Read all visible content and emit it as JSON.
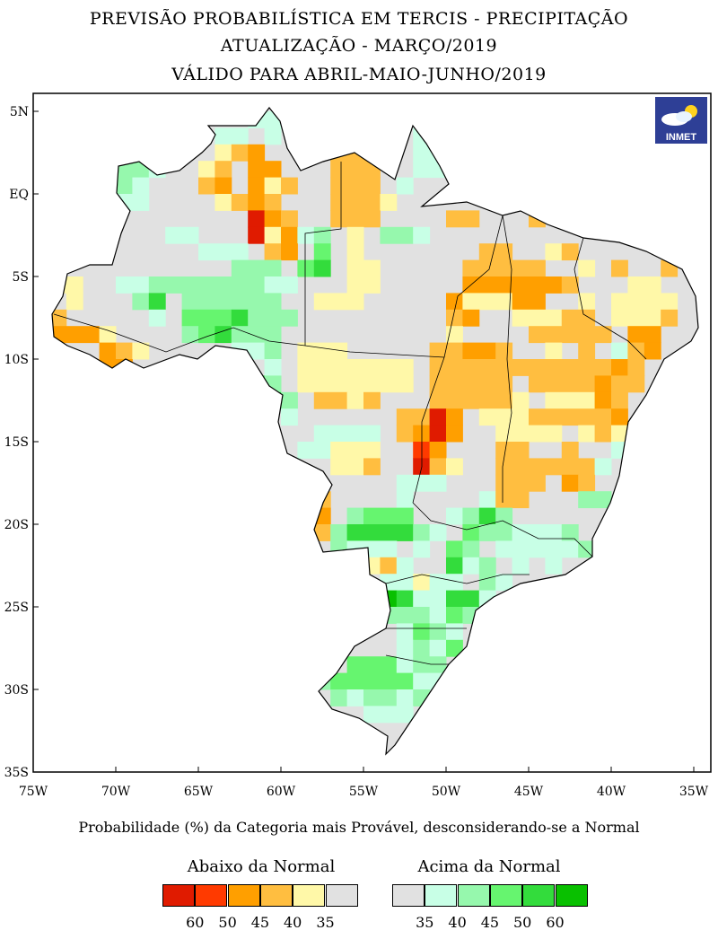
{
  "title": {
    "line1": "PREVISÃO PROBABILÍSTICA EM TERCIS - PRECIPITAÇÃO",
    "line2": "ATUALIZAÇÃO - MARÇO/2019",
    "line3": "VÁLIDO PARA ABRIL-MAIO-JUNHO/2019"
  },
  "logo": {
    "text": "INMET"
  },
  "axes": {
    "lat_labels": [
      "5N",
      "EQ",
      "5S",
      "10S",
      "15S",
      "20S",
      "25S",
      "30S",
      "35S"
    ],
    "lat_values": [
      5,
      0,
      -5,
      -10,
      -15,
      -20,
      -25,
      -30,
      -35
    ],
    "lon_labels": [
      "75W",
      "70W",
      "65W",
      "60W",
      "55W",
      "50W",
      "45W",
      "40W",
      "35W"
    ],
    "lon_values": [
      -75,
      -70,
      -65,
      -60,
      -55,
      -50,
      -45,
      -40,
      -35
    ]
  },
  "caption": "Probabilidade (%) da Categoria mais Provável, desconsiderando-se a Normal",
  "legend": {
    "below": {
      "title": "Abaixo da Normal",
      "labels": [
        "60",
        "50",
        "45",
        "40",
        "35"
      ],
      "colors": [
        "#e01b00",
        "#ff3a00",
        "#ff9f00",
        "#ffbe40",
        "#fff8a8",
        "#e1e1e1"
      ]
    },
    "above": {
      "title": "Acima da Normal",
      "labels": [
        "35",
        "40",
        "45",
        "50",
        "60"
      ],
      "colors": [
        "#e1e1e1",
        "#c8ffe6",
        "#96f8ad",
        "#66f56f",
        "#33dc3c",
        "#09c000"
      ]
    }
  },
  "classes": {
    "a": "#e01b00",
    "b": "#ff3a00",
    "c": "#ff9f00",
    "d": "#ffbe40",
    "e": "#fff8a8",
    "g": "#e1e1e1",
    "1": "#c8ffe6",
    "2": "#96f8ad",
    "3": "#66f56f",
    "4": "#33dc3c",
    "5": "#09c000"
  },
  "grid": {
    "origin_lat": 5,
    "origin_lon": -75,
    "cell_deg": 1,
    "cells": [
      [
        0,
        13,
        14,
        "1"
      ],
      [
        1,
        11,
        12,
        "1"
      ],
      [
        1,
        14,
        14,
        "1"
      ],
      [
        1,
        23,
        25,
        "1"
      ],
      [
        2,
        5,
        5,
        "4"
      ],
      [
        2,
        6,
        6,
        "3"
      ],
      [
        2,
        11,
        11,
        "e"
      ],
      [
        2,
        12,
        12,
        "d"
      ],
      [
        2,
        13,
        13,
        "c"
      ],
      [
        2,
        18,
        20,
        "d"
      ],
      [
        2,
        23,
        24,
        "1"
      ],
      [
        3,
        5,
        6,
        "2"
      ],
      [
        3,
        7,
        7,
        "1"
      ],
      [
        3,
        10,
        10,
        "e"
      ],
      [
        3,
        11,
        11,
        "d"
      ],
      [
        3,
        13,
        14,
        "c"
      ],
      [
        3,
        18,
        20,
        "d"
      ],
      [
        3,
        23,
        24,
        "1"
      ],
      [
        4,
        4,
        5,
        "2"
      ],
      [
        4,
        6,
        6,
        "1"
      ],
      [
        4,
        10,
        10,
        "d"
      ],
      [
        4,
        11,
        11,
        "c"
      ],
      [
        4,
        13,
        13,
        "c"
      ],
      [
        4,
        14,
        14,
        "e"
      ],
      [
        4,
        15,
        15,
        "d"
      ],
      [
        4,
        18,
        20,
        "d"
      ],
      [
        4,
        22,
        22,
        "1"
      ],
      [
        5,
        5,
        6,
        "1"
      ],
      [
        5,
        11,
        11,
        "e"
      ],
      [
        5,
        12,
        12,
        "d"
      ],
      [
        5,
        13,
        13,
        "c"
      ],
      [
        5,
        14,
        14,
        "d"
      ],
      [
        5,
        18,
        20,
        "d"
      ],
      [
        5,
        21,
        21,
        "e"
      ],
      [
        6,
        13,
        13,
        "a"
      ],
      [
        6,
        14,
        14,
        "c"
      ],
      [
        6,
        15,
        15,
        "d"
      ],
      [
        6,
        18,
        20,
        "d"
      ],
      [
        6,
        25,
        26,
        "d"
      ],
      [
        6,
        30,
        30,
        "d"
      ],
      [
        7,
        8,
        9,
        "1"
      ],
      [
        7,
        13,
        13,
        "a"
      ],
      [
        7,
        14,
        14,
        "e"
      ],
      [
        7,
        15,
        15,
        "c"
      ],
      [
        7,
        16,
        16,
        "1"
      ],
      [
        7,
        17,
        17,
        "2"
      ],
      [
        7,
        19,
        19,
        "e"
      ],
      [
        7,
        21,
        22,
        "2"
      ],
      [
        7,
        23,
        23,
        "1"
      ],
      [
        8,
        10,
        12,
        "1"
      ],
      [
        8,
        14,
        14,
        "d"
      ],
      [
        8,
        15,
        15,
        "c"
      ],
      [
        8,
        17,
        17,
        "3"
      ],
      [
        8,
        19,
        19,
        "e"
      ],
      [
        8,
        27,
        28,
        "d"
      ],
      [
        8,
        31,
        31,
        "e"
      ],
      [
        8,
        32,
        32,
        "d"
      ],
      [
        9,
        12,
        14,
        "2"
      ],
      [
        9,
        16,
        16,
        "3"
      ],
      [
        9,
        17,
        17,
        "4"
      ],
      [
        9,
        19,
        20,
        "e"
      ],
      [
        9,
        26,
        30,
        "d"
      ],
      [
        9,
        33,
        33,
        "e"
      ],
      [
        9,
        35,
        35,
        "d"
      ],
      [
        9,
        38,
        38,
        "d"
      ],
      [
        10,
        1,
        2,
        "e"
      ],
      [
        10,
        5,
        6,
        "1"
      ],
      [
        10,
        7,
        13,
        "2"
      ],
      [
        10,
        14,
        15,
        "1"
      ],
      [
        10,
        19,
        20,
        "e"
      ],
      [
        10,
        26,
        31,
        "c"
      ],
      [
        10,
        32,
        32,
        "d"
      ],
      [
        10,
        36,
        37,
        "e"
      ],
      [
        11,
        2,
        2,
        "e"
      ],
      [
        11,
        6,
        6,
        "2"
      ],
      [
        11,
        7,
        7,
        "4"
      ],
      [
        11,
        9,
        14,
        "2"
      ],
      [
        11,
        17,
        19,
        "e"
      ],
      [
        11,
        25,
        25,
        "c"
      ],
      [
        11,
        26,
        28,
        "e"
      ],
      [
        11,
        29,
        30,
        "c"
      ],
      [
        11,
        33,
        33,
        "e"
      ],
      [
        11,
        35,
        38,
        "e"
      ],
      [
        12,
        1,
        1,
        "d"
      ],
      [
        12,
        7,
        7,
        "1"
      ],
      [
        12,
        9,
        11,
        "3"
      ],
      [
        12,
        12,
        12,
        "4"
      ],
      [
        12,
        13,
        15,
        "2"
      ],
      [
        12,
        25,
        25,
        "d"
      ],
      [
        12,
        26,
        26,
        "c"
      ],
      [
        12,
        29,
        31,
        "e"
      ],
      [
        12,
        32,
        33,
        "d"
      ],
      [
        12,
        35,
        37,
        "e"
      ],
      [
        12,
        38,
        38,
        "d"
      ],
      [
        13,
        1,
        3,
        "c"
      ],
      [
        13,
        4,
        4,
        "e"
      ],
      [
        13,
        9,
        9,
        "2"
      ],
      [
        13,
        10,
        10,
        "3"
      ],
      [
        13,
        11,
        11,
        "4"
      ],
      [
        13,
        12,
        14,
        "2"
      ],
      [
        13,
        25,
        25,
        "e"
      ],
      [
        13,
        30,
        34,
        "d"
      ],
      [
        13,
        36,
        37,
        "c"
      ],
      [
        14,
        4,
        4,
        "c"
      ],
      [
        14,
        5,
        5,
        "d"
      ],
      [
        14,
        6,
        6,
        "e"
      ],
      [
        14,
        12,
        13,
        "1"
      ],
      [
        14,
        14,
        14,
        "2"
      ],
      [
        14,
        16,
        18,
        "e"
      ],
      [
        14,
        24,
        25,
        "d"
      ],
      [
        14,
        26,
        27,
        "c"
      ],
      [
        14,
        28,
        28,
        "d"
      ],
      [
        14,
        31,
        31,
        "e"
      ],
      [
        14,
        33,
        33,
        "d"
      ],
      [
        14,
        35,
        35,
        "1"
      ],
      [
        14,
        36,
        36,
        "d"
      ],
      [
        14,
        37,
        37,
        "c"
      ],
      [
        15,
        4,
        5,
        "c"
      ],
      [
        15,
        11,
        11,
        "2"
      ],
      [
        15,
        14,
        14,
        "1"
      ],
      [
        15,
        16,
        22,
        "e"
      ],
      [
        15,
        24,
        34,
        "d"
      ],
      [
        15,
        35,
        35,
        "c"
      ],
      [
        15,
        36,
        36,
        "d"
      ],
      [
        16,
        11,
        12,
        "3"
      ],
      [
        16,
        13,
        13,
        "4"
      ],
      [
        16,
        14,
        14,
        "2"
      ],
      [
        16,
        16,
        22,
        "e"
      ],
      [
        16,
        24,
        28,
        "d"
      ],
      [
        16,
        30,
        33,
        "d"
      ],
      [
        16,
        34,
        34,
        "c"
      ],
      [
        16,
        35,
        36,
        "d"
      ],
      [
        17,
        12,
        13,
        "3"
      ],
      [
        17,
        14,
        14,
        "4"
      ],
      [
        17,
        15,
        15,
        "2"
      ],
      [
        17,
        17,
        18,
        "d"
      ],
      [
        17,
        19,
        19,
        "e"
      ],
      [
        17,
        20,
        20,
        "d"
      ],
      [
        17,
        24,
        28,
        "d"
      ],
      [
        17,
        29,
        29,
        "e"
      ],
      [
        17,
        31,
        33,
        "e"
      ],
      [
        17,
        34,
        34,
        "c"
      ],
      [
        17,
        35,
        35,
        "d"
      ],
      [
        18,
        15,
        15,
        "1"
      ],
      [
        18,
        22,
        23,
        "d"
      ],
      [
        18,
        24,
        24,
        "a"
      ],
      [
        18,
        25,
        25,
        "c"
      ],
      [
        18,
        27,
        29,
        "e"
      ],
      [
        18,
        30,
        34,
        "d"
      ],
      [
        18,
        35,
        35,
        "c"
      ],
      [
        19,
        17,
        20,
        "1"
      ],
      [
        19,
        22,
        22,
        "d"
      ],
      [
        19,
        23,
        23,
        "c"
      ],
      [
        19,
        24,
        24,
        "a"
      ],
      [
        19,
        25,
        25,
        "c"
      ],
      [
        19,
        28,
        31,
        "e"
      ],
      [
        19,
        33,
        33,
        "e"
      ],
      [
        19,
        34,
        34,
        "d"
      ],
      [
        19,
        35,
        35,
        "e"
      ],
      [
        20,
        16,
        17,
        "1"
      ],
      [
        20,
        18,
        20,
        "e"
      ],
      [
        20,
        23,
        23,
        "b"
      ],
      [
        20,
        24,
        24,
        "c"
      ],
      [
        20,
        28,
        29,
        "d"
      ],
      [
        20,
        32,
        32,
        "d"
      ],
      [
        20,
        35,
        35,
        "1"
      ],
      [
        21,
        18,
        19,
        "e"
      ],
      [
        21,
        20,
        20,
        "d"
      ],
      [
        21,
        23,
        23,
        "a"
      ],
      [
        21,
        24,
        24,
        "d"
      ],
      [
        21,
        25,
        25,
        "e"
      ],
      [
        21,
        28,
        33,
        "d"
      ],
      [
        21,
        34,
        34,
        "1"
      ],
      [
        22,
        22,
        24,
        "1"
      ],
      [
        22,
        28,
        30,
        "d"
      ],
      [
        22,
        32,
        32,
        "c"
      ],
      [
        22,
        33,
        33,
        "d"
      ],
      [
        23,
        17,
        17,
        "d"
      ],
      [
        23,
        22,
        22,
        "1"
      ],
      [
        23,
        27,
        27,
        "1"
      ],
      [
        23,
        28,
        29,
        "d"
      ],
      [
        23,
        33,
        34,
        "2"
      ],
      [
        24,
        17,
        17,
        "c"
      ],
      [
        24,
        19,
        19,
        "2"
      ],
      [
        24,
        20,
        22,
        "3"
      ],
      [
        24,
        25,
        25,
        "1"
      ],
      [
        24,
        26,
        26,
        "2"
      ],
      [
        24,
        27,
        27,
        "4"
      ],
      [
        24,
        28,
        28,
        "2"
      ],
      [
        25,
        17,
        17,
        "d"
      ],
      [
        25,
        18,
        18,
        "2"
      ],
      [
        25,
        19,
        22,
        "4"
      ],
      [
        25,
        23,
        23,
        "2"
      ],
      [
        25,
        24,
        24,
        "1"
      ],
      [
        25,
        26,
        26,
        "3"
      ],
      [
        25,
        27,
        28,
        "2"
      ],
      [
        25,
        29,
        31,
        "1"
      ],
      [
        25,
        32,
        32,
        "2"
      ],
      [
        26,
        18,
        18,
        "2"
      ],
      [
        26,
        19,
        21,
        "1"
      ],
      [
        26,
        23,
        23,
        "1"
      ],
      [
        26,
        25,
        25,
        "3"
      ],
      [
        26,
        26,
        26,
        "2"
      ],
      [
        26,
        28,
        32,
        "1"
      ],
      [
        26,
        33,
        33,
        "2"
      ],
      [
        26,
        34,
        34,
        "3"
      ],
      [
        27,
        20,
        20,
        "e"
      ],
      [
        27,
        21,
        21,
        "d"
      ],
      [
        27,
        22,
        22,
        "1"
      ],
      [
        27,
        25,
        25,
        "4"
      ],
      [
        27,
        26,
        26,
        "1"
      ],
      [
        27,
        27,
        27,
        "2"
      ],
      [
        27,
        29,
        29,
        "1"
      ],
      [
        27,
        31,
        31,
        "1"
      ],
      [
        28,
        21,
        22,
        "1"
      ],
      [
        28,
        23,
        23,
        "e"
      ],
      [
        28,
        24,
        25,
        "1"
      ],
      [
        28,
        27,
        27,
        "2"
      ],
      [
        28,
        28,
        28,
        "1"
      ],
      [
        29,
        21,
        21,
        "5"
      ],
      [
        29,
        22,
        22,
        "4"
      ],
      [
        29,
        23,
        24,
        "1"
      ],
      [
        29,
        25,
        26,
        "4"
      ],
      [
        29,
        27,
        27,
        "1"
      ],
      [
        30,
        21,
        23,
        "2"
      ],
      [
        30,
        24,
        24,
        "1"
      ],
      [
        30,
        25,
        25,
        "3"
      ],
      [
        30,
        26,
        26,
        "2"
      ],
      [
        31,
        22,
        22,
        "1"
      ],
      [
        31,
        23,
        23,
        "3"
      ],
      [
        31,
        24,
        24,
        "2"
      ],
      [
        31,
        25,
        25,
        "1"
      ],
      [
        32,
        22,
        22,
        "1"
      ],
      [
        32,
        23,
        23,
        "2"
      ],
      [
        32,
        24,
        24,
        "1"
      ],
      [
        32,
        25,
        25,
        "3"
      ],
      [
        33,
        19,
        21,
        "3"
      ],
      [
        33,
        22,
        22,
        "1"
      ],
      [
        33,
        23,
        24,
        "2"
      ],
      [
        34,
        17,
        17,
        "2"
      ],
      [
        34,
        18,
        22,
        "3"
      ],
      [
        34,
        23,
        24,
        "1"
      ],
      [
        35,
        18,
        18,
        "2"
      ],
      [
        35,
        19,
        19,
        "1"
      ],
      [
        35,
        20,
        21,
        "2"
      ],
      [
        35,
        22,
        22,
        "1"
      ],
      [
        35,
        23,
        23,
        "2"
      ],
      [
        36,
        20,
        22,
        "1"
      ]
    ]
  }
}
